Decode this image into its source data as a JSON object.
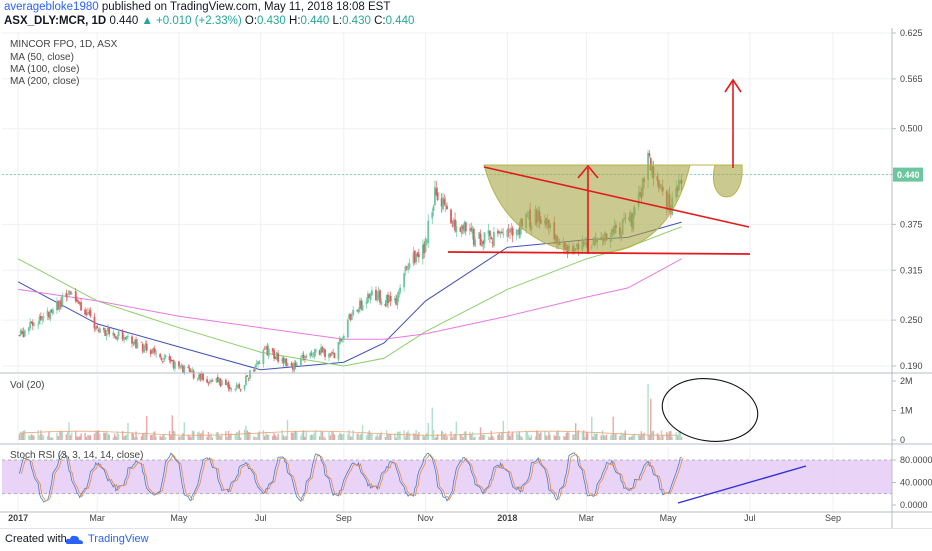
{
  "header": {
    "author": "averagebloke1980",
    "published": "published on TradingView.com, May 11, 2018 18:08 EST",
    "symbol": "ASX_DLY:MCR, 1D",
    "price": "0.440",
    "change": "▲ +0.010 (+2.33%)",
    "o_label": "O:",
    "o_value": "0.430",
    "h_label": "H:",
    "h_value": "0.440",
    "l_label": "L:",
    "l_value": "0.430",
    "c_label": "C:",
    "c_value": "0.440"
  },
  "legend": {
    "title": "MINCOR FPO, 1D, ASX",
    "ma50": "MA (50, close)",
    "ma100": "MA (100, close)",
    "ma200": "MA (200, close)"
  },
  "footer": {
    "created_with": "Created with",
    "brand": "TradingView"
  },
  "colors": {
    "up": "#6cc6a0",
    "down": "#d95f5f",
    "ma50": "#3f51b5",
    "ma100": "#8bd06a",
    "ma200": "#e87ae0",
    "cup": "#a7a544",
    "annotation_red": "#e31a1c",
    "trend_blue": "#2e2edb",
    "rsi_band": "#e5ccf7",
    "vol_ma": "#e8a87c"
  },
  "chart_data": [
    {
      "type": "candlestick",
      "title": "MINCOR FPO, 1D, ASX",
      "x_ticks": [
        "2017",
        "Mar",
        "May",
        "Jul",
        "Sep",
        "Nov",
        "2018",
        "Mar",
        "May",
        "Jul",
        "Sep"
      ],
      "y_ticks": [
        "0.625",
        "0.565",
        "0.500",
        "0.440",
        "0.375",
        "0.315",
        "0.250",
        "0.190"
      ],
      "ylim": [
        0.18,
        0.63
      ],
      "last_price_label": "0.440",
      "price_path": [
        [
          "2017-01-02",
          0.23
        ],
        [
          "2017-01-20",
          0.255
        ],
        [
          "2017-02-10",
          0.285
        ],
        [
          "2017-03-01",
          0.24
        ],
        [
          "2017-03-25",
          0.225
        ],
        [
          "2017-04-20",
          0.2
        ],
        [
          "2017-05-10",
          0.18
        ],
        [
          "2017-06-15",
          0.16
        ],
        [
          "2017-07-05",
          0.21
        ],
        [
          "2017-07-25",
          0.19
        ],
        [
          "2017-08-10",
          0.21
        ],
        [
          "2017-08-25",
          0.205
        ],
        [
          "2017-09-05",
          0.25
        ],
        [
          "2017-09-20",
          0.285
        ],
        [
          "2017-10-10",
          0.27
        ],
        [
          "2017-10-20",
          0.33
        ],
        [
          "2017-10-31",
          0.34
        ],
        [
          "2017-11-08",
          0.42
        ],
        [
          "2017-11-20",
          0.38
        ],
        [
          "2017-12-10",
          0.355
        ],
        [
          "2017-12-31",
          0.36
        ],
        [
          "2018-01-25",
          0.39
        ],
        [
          "2018-02-10",
          0.345
        ],
        [
          "2018-03-05",
          0.35
        ],
        [
          "2018-03-25",
          0.37
        ],
        [
          "2018-04-05",
          0.38
        ],
        [
          "2018-04-16",
          0.455
        ],
        [
          "2018-04-26",
          0.42
        ],
        [
          "2018-05-03",
          0.395
        ],
        [
          "2018-05-11",
          0.44
        ]
      ],
      "series": [
        {
          "name": "MA (50, close)",
          "points": [
            [
              "2017-01-01",
              0.3
            ],
            [
              "2017-03-01",
              0.245
            ],
            [
              "2017-05-01",
              0.215
            ],
            [
              "2017-07-01",
              0.185
            ],
            [
              "2017-09-01",
              0.195
            ],
            [
              "2017-10-01",
              0.22
            ],
            [
              "2017-11-01",
              0.275
            ],
            [
              "2018-01-01",
              0.345
            ],
            [
              "2018-03-01",
              0.355
            ],
            [
              "2018-04-01",
              0.358
            ],
            [
              "2018-05-11",
              0.378
            ]
          ]
        },
        {
          "name": "MA (100, close)",
          "points": [
            [
              "2017-01-01",
              0.33
            ],
            [
              "2017-03-01",
              0.275
            ],
            [
              "2017-05-01",
              0.24
            ],
            [
              "2017-07-01",
              0.208
            ],
            [
              "2017-09-01",
              0.19
            ],
            [
              "2017-10-01",
              0.2
            ],
            [
              "2017-11-01",
              0.235
            ],
            [
              "2018-01-01",
              0.29
            ],
            [
              "2018-03-01",
              0.33
            ],
            [
              "2018-04-01",
              0.345
            ],
            [
              "2018-05-11",
              0.372
            ]
          ]
        },
        {
          "name": "MA (200, close)",
          "points": [
            [
              "2017-01-01",
              0.29
            ],
            [
              "2017-03-01",
              0.275
            ],
            [
              "2017-05-01",
              0.255
            ],
            [
              "2017-07-01",
              0.24
            ],
            [
              "2017-09-01",
              0.225
            ],
            [
              "2017-10-01",
              0.225
            ],
            [
              "2017-11-01",
              0.232
            ],
            [
              "2018-01-01",
              0.255
            ],
            [
              "2018-03-01",
              0.28
            ],
            [
              "2018-04-01",
              0.292
            ],
            [
              "2018-05-11",
              0.33
            ]
          ]
        }
      ]
    },
    {
      "type": "bar",
      "title": "Vol (20)",
      "y_ticks": [
        "2M",
        "1M",
        "0"
      ],
      "ylim": [
        0,
        2000000
      ],
      "spikes": [
        [
          "2017-05-05",
          600000
        ],
        [
          "2017-11-06",
          1100000
        ],
        [
          "2018-04-16",
          1900000
        ],
        [
          "2018-04-18",
          1400000
        ]
      ]
    },
    {
      "type": "line",
      "title": "Stoch RSI (3, 3, 14, 14, close)",
      "y_ticks": [
        "80.0000",
        "40.0000",
        "0.0000"
      ],
      "ylim": [
        0,
        100
      ],
      "band": [
        20,
        80
      ]
    }
  ]
}
